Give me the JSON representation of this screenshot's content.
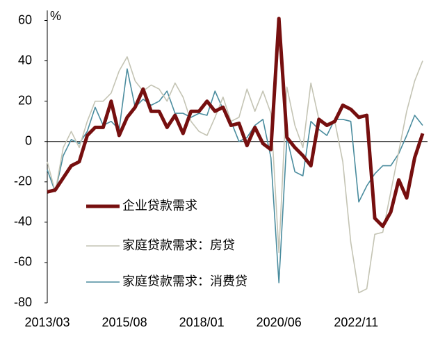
{
  "chart_data": {
    "type": "line",
    "unit_label": "%",
    "x": [
      "2013/03",
      "2013/06",
      "2013/09",
      "2013/12",
      "2014/03",
      "2014/06",
      "2014/09",
      "2014/12",
      "2015/03",
      "2015/06",
      "2015/09",
      "2015/12",
      "2016/03",
      "2016/06",
      "2016/09",
      "2016/12",
      "2017/03",
      "2017/06",
      "2017/09",
      "2017/12",
      "2018/03",
      "2018/06",
      "2018/09",
      "2018/12",
      "2019/03",
      "2019/06",
      "2019/09",
      "2019/12",
      "2020/03",
      "2020/06",
      "2020/09",
      "2020/12",
      "2021/03",
      "2021/06",
      "2021/09",
      "2021/12",
      "2022/03",
      "2022/06",
      "2022/09",
      "2022/12",
      "2023/03",
      "2023/06",
      "2023/09",
      "2023/12",
      "2024/03",
      "2024/06",
      "2024/09",
      "2024/12"
    ],
    "series": [
      {
        "name": "企业贷款需求",
        "color": "#760f0f",
        "width": 5,
        "values": [
          -25,
          -24,
          -18,
          -12,
          -10,
          3,
          7,
          7,
          20,
          3,
          12,
          17,
          26,
          15,
          15,
          7,
          13,
          4,
          15,
          15,
          20,
          15,
          17,
          8,
          9,
          -2,
          7,
          -1,
          -4,
          61,
          2,
          -3,
          -7,
          -12,
          11,
          8,
          10,
          18,
          16,
          12,
          13,
          -38,
          -42,
          -35,
          -19,
          -28,
          -8,
          4
        ]
      },
      {
        "name": "家庭贷款需求：房贷",
        "color": "#c4c4b4",
        "width": 1.6,
        "values": [
          -10,
          -25,
          -3,
          5,
          -3,
          10,
          20,
          20,
          24,
          35,
          42,
          30,
          25,
          28,
          26,
          20,
          29,
          22,
          10,
          5,
          3,
          12,
          22,
          10,
          12,
          26,
          15,
          25,
          14,
          -55,
          27,
          8,
          -3,
          29,
          11,
          9,
          10,
          -10,
          -50,
          -75,
          -73,
          -46,
          -45,
          -25,
          -5,
          15,
          30,
          40
        ]
      },
      {
        "name": "家庭贷款需求：消费贷",
        "color": "#4a8c9e",
        "width": 1.6,
        "values": [
          -14,
          -25,
          -7,
          1,
          -1,
          5,
          17,
          8,
          10,
          6,
          36,
          17,
          21,
          18,
          20,
          25,
          14,
          14,
          12,
          14,
          13,
          25,
          16,
          10,
          0,
          2,
          8,
          11,
          -8,
          -70,
          2,
          -15,
          -17,
          10,
          6,
          3,
          11,
          11,
          10,
          -30,
          -22,
          -16,
          -12,
          -12,
          -6,
          3,
          13,
          8
        ]
      }
    ],
    "ylim": [
      -80,
      65
    ],
    "yticks": [
      -80,
      -60,
      -40,
      -20,
      0,
      20,
      40,
      60
    ],
    "xticks": [
      "2013/03",
      "2015/08",
      "2018/01",
      "2020/06",
      "2022/11"
    ]
  }
}
